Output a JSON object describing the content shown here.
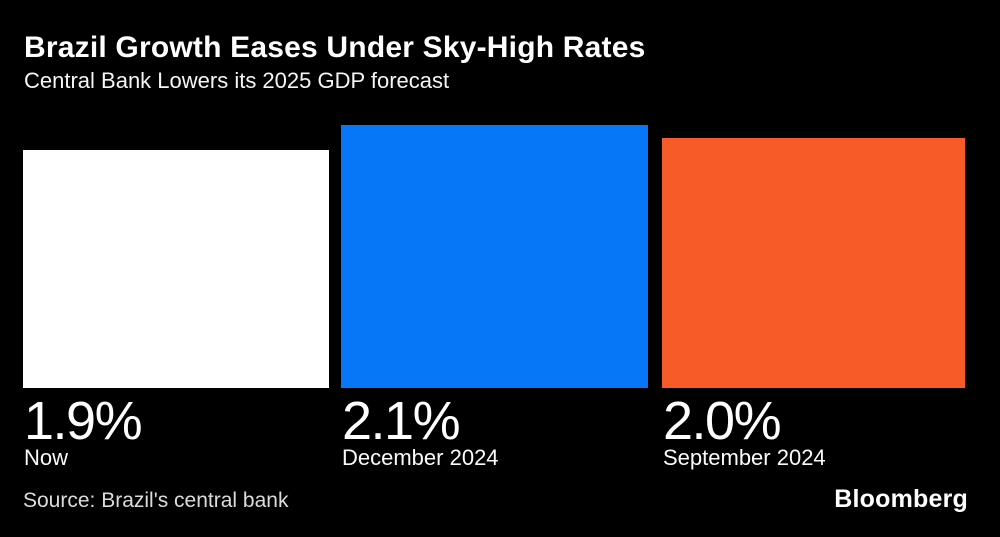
{
  "header": {
    "title": "Brazil Growth Eases Under Sky-High Rates",
    "subtitle": "Central Bank Lowers its 2025 GDP forecast"
  },
  "chart_data": {
    "type": "bar",
    "title": "Brazil Growth Eases Under Sky-High Rates",
    "subtitle": "Central Bank Lowers its 2025 GDP forecast",
    "unit": "%",
    "categories": [
      "Now",
      "December 2024",
      "September 2024"
    ],
    "values": [
      1.9,
      2.1,
      2.0
    ],
    "bars": [
      {
        "category": "Now",
        "value": 1.9,
        "value_label": "1.9%",
        "color": "#ffffff"
      },
      {
        "category": "December 2024",
        "value": 2.1,
        "value_label": "2.1%",
        "color": "#0677f6"
      },
      {
        "category": "September 2024",
        "value": 2.0,
        "value_label": "2.0%",
        "color": "#f75b28"
      }
    ],
    "ylim": [
      0,
      2.1
    ],
    "grid": false,
    "legend": "none",
    "background": "#000000",
    "value_labels_position": "below-bar",
    "orientation": "vertical"
  },
  "footer": {
    "source": "Source: Brazil's central bank",
    "brand": "Bloomberg"
  }
}
